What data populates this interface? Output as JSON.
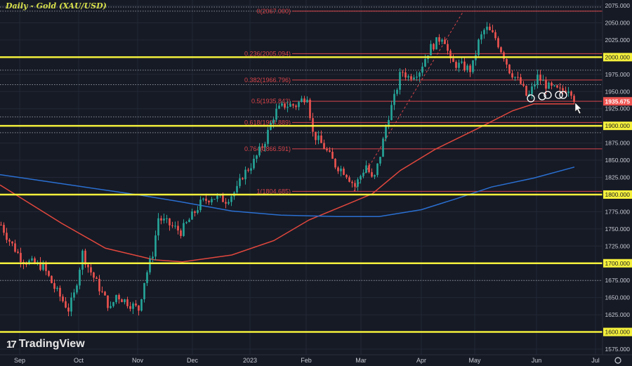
{
  "header": {
    "title": "Daily - Gold (XAU/USD)"
  },
  "brand": {
    "name": "TradingView"
  },
  "colors": {
    "bg": "#161a25",
    "up": "#26a69a",
    "down": "#ef5350",
    "level": "#f4f03c",
    "fib": "#d9454a",
    "ma_fast": "#e2473d",
    "ma_slow": "#2a6fd1",
    "grid": "#232836",
    "axis_text": "#c9ccd3"
  },
  "chart_data": {
    "type": "candlestick",
    "title": "Daily - Gold (XAU/USD)",
    "ylim": [
      1575,
      2075
    ],
    "y_ticks": [
      "2075.000",
      "2050.000",
      "2025.000",
      "1975.000",
      "1950.000",
      "1925.000",
      "1875.000",
      "1850.000",
      "1825.000",
      "1775.000",
      "1750.000",
      "1725.000",
      "1675.000",
      "1650.000",
      "1625.000",
      "1575.000"
    ],
    "x_ticks": [
      {
        "label": "Sep",
        "day": 7
      },
      {
        "label": "Oct",
        "day": 28
      },
      {
        "label": "Nov",
        "day": 49
      },
      {
        "label": "Dec",
        "day": 68.5
      },
      {
        "label": "2023",
        "day": 89
      },
      {
        "label": "Feb",
        "day": 109
      },
      {
        "label": "Mar",
        "day": 128.5
      },
      {
        "label": "Apr",
        "day": 150
      },
      {
        "label": "May",
        "day": 169
      },
      {
        "label": "Jun",
        "day": 191
      },
      {
        "label": "Jul",
        "day": 212
      }
    ],
    "price_path": [
      [
        0,
        1756
      ],
      [
        2.5,
        1736
      ],
      [
        7.5,
        1705
      ],
      [
        15,
        1695
      ],
      [
        19,
        1664
      ],
      [
        24,
        1633
      ],
      [
        26,
        1654
      ],
      [
        29,
        1715
      ],
      [
        31,
        1695
      ],
      [
        35,
        1664
      ],
      [
        39,
        1633
      ],
      [
        41,
        1654
      ],
      [
        45,
        1643
      ],
      [
        49,
        1633
      ],
      [
        51,
        1674
      ],
      [
        54,
        1715
      ],
      [
        56,
        1766
      ],
      [
        60,
        1756
      ],
      [
        64,
        1746
      ],
      [
        67.5,
        1766
      ],
      [
        71,
        1787
      ],
      [
        75,
        1797
      ],
      [
        80,
        1792
      ],
      [
        84,
        1807
      ],
      [
        86,
        1828
      ],
      [
        90,
        1848
      ],
      [
        94,
        1879
      ],
      [
        97.5,
        1920
      ],
      [
        101,
        1930
      ],
      [
        105,
        1930
      ],
      [
        109,
        1945
      ],
      [
        111,
        1889
      ],
      [
        115,
        1869
      ],
      [
        119,
        1843
      ],
      [
        122.5,
        1833
      ],
      [
        126,
        1812
      ],
      [
        130,
        1843
      ],
      [
        132.5,
        1817
      ],
      [
        135,
        1858
      ],
      [
        137.5,
        1909
      ],
      [
        140,
        1940
      ],
      [
        142.5,
        1981
      ],
      [
        145,
        1971
      ],
      [
        149,
        1981
      ],
      [
        152.5,
        2012
      ],
      [
        155,
        2022
      ],
      [
        157.5,
        2033
      ],
      [
        160,
        1992
      ],
      [
        164,
        1987
      ],
      [
        167.5,
        1981
      ],
      [
        170,
        2022
      ],
      [
        172.5,
        2043
      ],
      [
        176,
        2028
      ],
      [
        179,
        2002
      ],
      [
        181,
        1981
      ],
      [
        185,
        1961
      ],
      [
        187.5,
        1940
      ],
      [
        191,
        1971
      ],
      [
        195,
        1956
      ],
      [
        199,
        1950
      ],
      [
        202.5,
        1956
      ],
      [
        204.5,
        1935
      ]
    ],
    "series": [
      {
        "name": "MA fast",
        "color": "#e2473d",
        "points": [
          [
            0,
            1814
          ],
          [
            22,
            1758
          ],
          [
            37.5,
            1722
          ],
          [
            55,
            1705
          ],
          [
            65,
            1702
          ],
          [
            82.5,
            1712
          ],
          [
            97.5,
            1733
          ],
          [
            110,
            1763
          ],
          [
            122.5,
            1784
          ],
          [
            132.5,
            1801
          ],
          [
            142.5,
            1835
          ],
          [
            155,
            1866
          ],
          [
            170,
            1896
          ],
          [
            182.5,
            1922
          ],
          [
            190,
            1932
          ],
          [
            204.5,
            1932
          ]
        ]
      },
      {
        "name": "MA slow",
        "color": "#2a6fd1",
        "points": [
          [
            0,
            1829
          ],
          [
            25,
            1814
          ],
          [
            50,
            1799
          ],
          [
            65,
            1789
          ],
          [
            82.5,
            1776
          ],
          [
            100,
            1770
          ],
          [
            120,
            1768
          ],
          [
            135,
            1768
          ],
          [
            150,
            1778
          ],
          [
            162.5,
            1794
          ],
          [
            175,
            1811
          ],
          [
            190,
            1824
          ],
          [
            204.5,
            1840
          ]
        ]
      }
    ],
    "horizontal_levels": [
      {
        "price": 2000,
        "label": "2000.000"
      },
      {
        "price": 1900,
        "label": "1900.000"
      },
      {
        "price": 1800,
        "label": "1800.000"
      },
      {
        "price": 1700,
        "label": "1700.000"
      },
      {
        "price": 1600,
        "label": "1600.000"
      }
    ],
    "fib_levels": [
      {
        "ratio": "0",
        "price": 2067.0,
        "label": "0(2067.000)"
      },
      {
        "ratio": "0.236",
        "price": 2005.094,
        "label": "0.236(2005.094)"
      },
      {
        "ratio": "0.382",
        "price": 1966.796,
        "label": "0.382(1966.796)"
      },
      {
        "ratio": "0.5",
        "price": 1935.843,
        "label": "0.5(1935.843)"
      },
      {
        "ratio": "0.618",
        "price": 1904.889,
        "label": "0.618(1904.889)"
      },
      {
        "ratio": "0.764",
        "price": 1866.591,
        "label": "0.764(1866.591)"
      },
      {
        "ratio": "1",
        "price": 1804.685,
        "label": "1(1804.685)"
      }
    ],
    "dotted_levels": [
      2073,
      2067,
      1981,
      1960,
      1913,
      1890,
      1675
    ],
    "current_price": {
      "value": 1935.675,
      "label": "1935.675"
    },
    "touch_circles": [
      [
        189,
        1940
      ],
      [
        193,
        1943
      ],
      [
        195,
        1945
      ],
      [
        199,
        1945
      ],
      [
        200.5,
        1945
      ]
    ]
  }
}
